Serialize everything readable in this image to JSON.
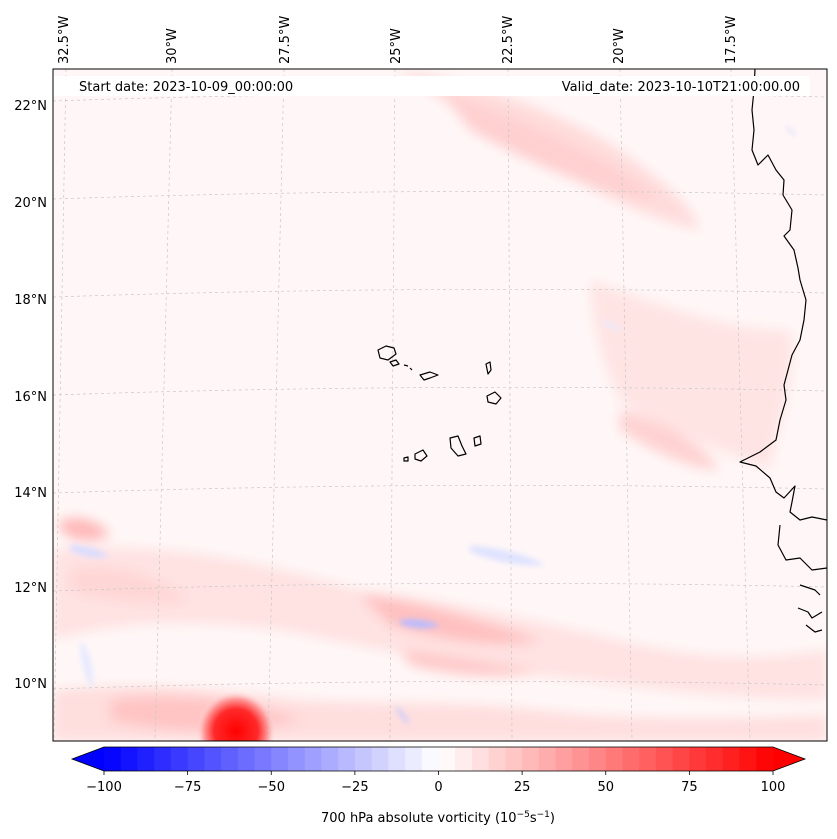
{
  "map": {
    "start_label": "Start date: 2023-10-09_00:00:00",
    "valid_label": "Valid_date: 2023-10-10T21:00:00.00",
    "lon_labels": [
      "32.5°W",
      "30°W",
      "27.5°W",
      "25°W",
      "22.5°W",
      "20°W",
      "17.5°W"
    ],
    "lat_labels": [
      "22°N",
      "20°N",
      "18°N",
      "16°N",
      "14°N",
      "12°N",
      "10°N"
    ],
    "field_colors": {
      "background": "#fff7f7",
      "pos_weak": "#ffe2e2",
      "pos_mid": "#ffc4c4",
      "pos_strong": "#ff1e1e",
      "neg_weak": "#eef0ff",
      "neg_mid": "#c9ccff",
      "coastline": "#000000"
    }
  },
  "colorbar": {
    "tick_labels": [
      "−100",
      "−75",
      "−50",
      "−25",
      "0",
      "25",
      "50",
      "75",
      "100"
    ],
    "label_prefix": "700 hPa absolute vorticity (10",
    "label_exp1": "−5",
    "label_mid": "s",
    "label_exp2": "−1",
    "label_suffix": ")",
    "min": -100,
    "max": 100,
    "cmap": "bwr"
  }
}
